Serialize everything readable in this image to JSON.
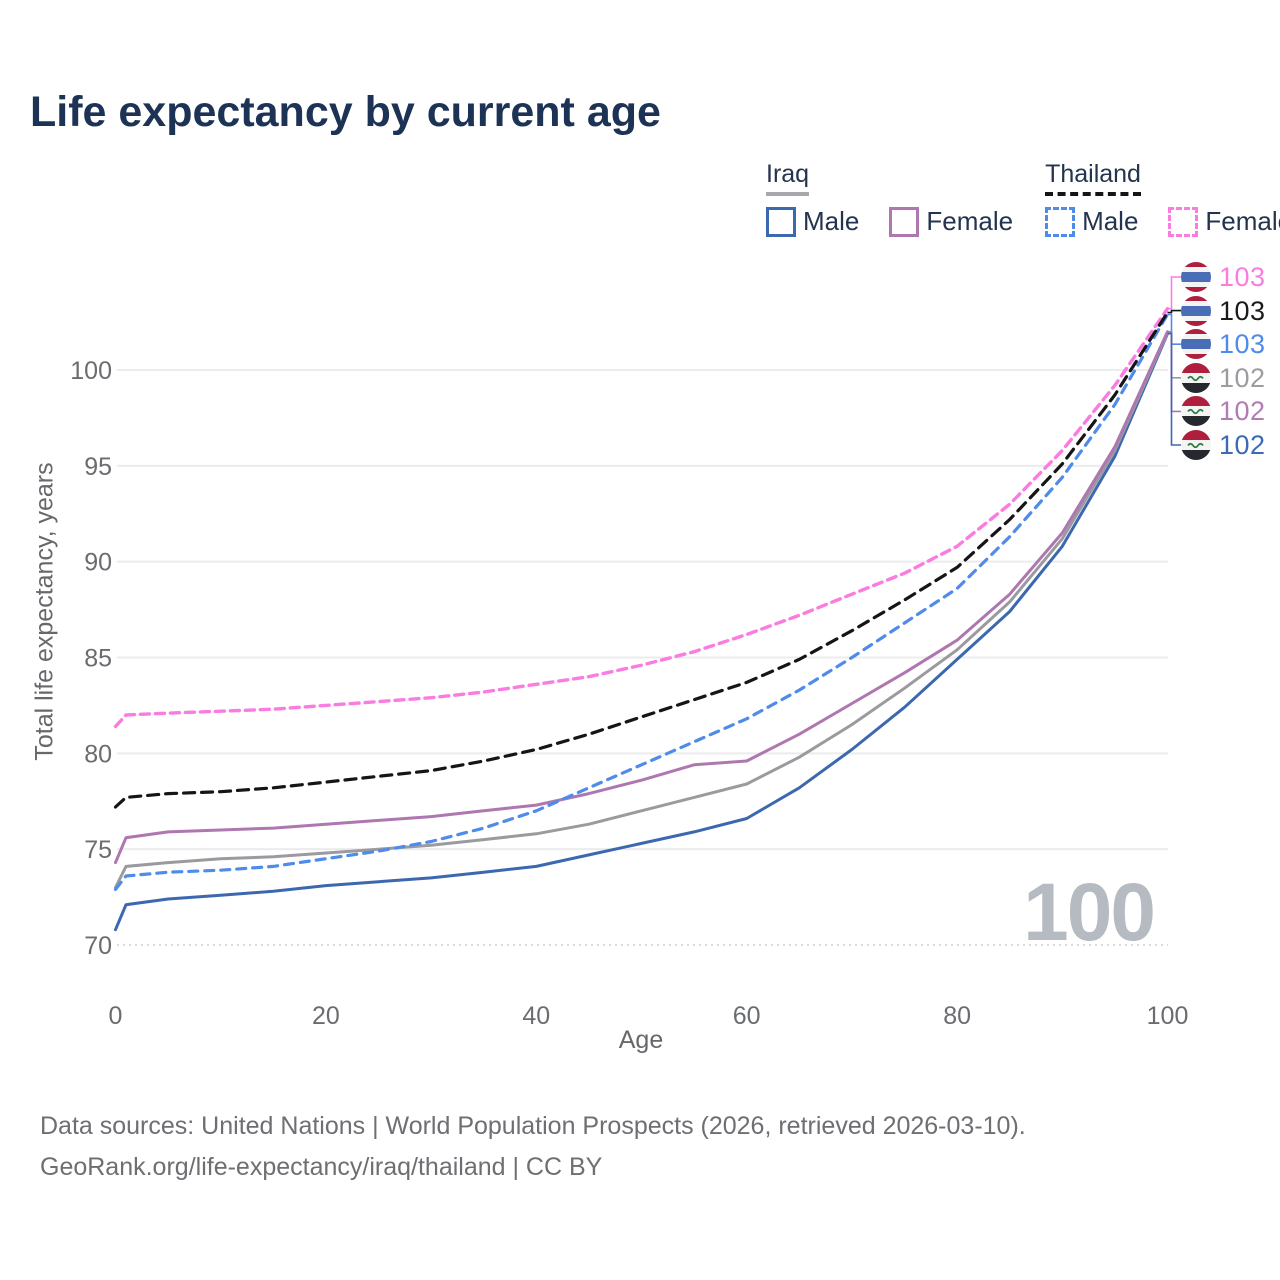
{
  "title": "Life expectancy by current age",
  "watermark": "100",
  "legend": {
    "groups": [
      {
        "title": "Iraq",
        "underline_series": "iraq_total",
        "items": [
          {
            "label": "Male",
            "series": "iraq_male"
          },
          {
            "label": "Female",
            "series": "iraq_female"
          }
        ]
      },
      {
        "title": "Thailand",
        "underline_series": "thailand_total",
        "items": [
          {
            "label": "Male",
            "series": "thailand_male"
          },
          {
            "label": "Female",
            "series": "thailand_female"
          }
        ]
      }
    ]
  },
  "footer": {
    "line1": "Data sources: United Nations | World Population Prospects (2026, retrieved 2026-03-10).",
    "line2": "GeoRank.org/life-expectancy/iraq/thailand | CC BY"
  },
  "chart_data": {
    "type": "line",
    "title": "Life expectancy by current age",
    "xlabel": "Age",
    "ylabel": "Total life expectancy, years",
    "xlim": [
      0,
      100
    ],
    "ylim": [
      69.5,
      103.5
    ],
    "xticks": [
      0,
      20,
      40,
      60,
      80,
      100
    ],
    "yticks": [
      70,
      75,
      80,
      85,
      90,
      95,
      100
    ],
    "grid": "horizontal",
    "legend_position": "top-right",
    "ages": [
      0,
      1,
      5,
      10,
      15,
      20,
      25,
      30,
      35,
      40,
      45,
      50,
      55,
      60,
      65,
      70,
      75,
      80,
      85,
      90,
      95,
      100
    ],
    "series": [
      {
        "id": "iraq_male",
        "name": "Iraq Male",
        "country": "Iraq",
        "sex": "Male",
        "color": "#3c68b0",
        "dash": null,
        "width": 3,
        "values": [
          70.8,
          72.1,
          72.4,
          72.6,
          72.8,
          73.1,
          73.3,
          73.5,
          73.8,
          74.1,
          74.7,
          75.3,
          75.9,
          76.6,
          78.2,
          80.2,
          82.4,
          84.9,
          87.4,
          90.8,
          95.5,
          101.9
        ]
      },
      {
        "id": "iraq_total",
        "name": "Iraq Total",
        "country": "Iraq",
        "sex": "Both",
        "color": "#9b9b9f",
        "dash": null,
        "width": 3,
        "values": [
          73.0,
          74.1,
          74.3,
          74.5,
          74.6,
          74.8,
          75.0,
          75.2,
          75.5,
          75.8,
          76.3,
          77.0,
          77.7,
          78.4,
          79.8,
          81.5,
          83.4,
          85.4,
          87.9,
          91.2,
          95.8,
          101.95
        ]
      },
      {
        "id": "iraq_female",
        "name": "Iraq Female",
        "country": "Iraq",
        "sex": "Female",
        "color": "#ae77b0",
        "dash": null,
        "width": 3,
        "values": [
          74.3,
          75.6,
          75.9,
          76.0,
          76.1,
          76.3,
          76.5,
          76.7,
          77.0,
          77.3,
          77.9,
          78.6,
          79.4,
          79.6,
          81.0,
          82.6,
          84.2,
          85.9,
          88.3,
          91.5,
          96.0,
          102.0
        ]
      },
      {
        "id": "thailand_male",
        "name": "Thailand Male",
        "country": "Thailand",
        "sex": "Male",
        "color": "#4f8bea",
        "dash": "9 7",
        "width": 3.2,
        "values": [
          72.9,
          73.6,
          73.8,
          73.9,
          74.1,
          74.5,
          74.9,
          75.4,
          76.1,
          77.0,
          78.2,
          79.4,
          80.6,
          81.8,
          83.3,
          85.0,
          86.8,
          88.6,
          91.3,
          94.4,
          98.2,
          102.9
        ]
      },
      {
        "id": "thailand_female",
        "name": "Thailand Female",
        "country": "Thailand",
        "sex": "Female",
        "color": "#fb7ce1",
        "dash": "9 6",
        "width": 3.4,
        "values": [
          81.4,
          82.0,
          82.1,
          82.2,
          82.3,
          82.5,
          82.7,
          82.9,
          83.2,
          83.6,
          84.0,
          84.6,
          85.3,
          86.2,
          87.2,
          88.3,
          89.4,
          90.8,
          93.0,
          95.8,
          99.2,
          103.2
        ]
      },
      {
        "id": "thailand_total",
        "name": "Thailand Total",
        "country": "Thailand",
        "sex": "Both",
        "color": "#151515",
        "dash": "11 7",
        "width": 3.2,
        "values": [
          77.2,
          77.7,
          77.9,
          78.0,
          78.2,
          78.5,
          78.8,
          79.1,
          79.6,
          80.2,
          81.0,
          81.9,
          82.8,
          83.7,
          84.9,
          86.4,
          88.0,
          89.7,
          92.2,
          95.1,
          98.7,
          103.0
        ]
      }
    ],
    "end_labels": [
      {
        "series": "thailand_female",
        "flag": "thailand",
        "value": "103",
        "color": "#fb7ce1"
      },
      {
        "series": "thailand_total",
        "flag": "thailand",
        "value": "103",
        "color": "#1a1a1a"
      },
      {
        "series": "thailand_male",
        "flag": "thailand",
        "value": "103",
        "color": "#4f8bea"
      },
      {
        "series": "iraq_total",
        "flag": "iraq",
        "value": "102",
        "color": "#9c9ca1"
      },
      {
        "series": "iraq_female",
        "flag": "iraq",
        "value": "102",
        "color": "#b27cb2"
      },
      {
        "series": "iraq_male",
        "flag": "iraq",
        "value": "102",
        "color": "#3d6bb3"
      }
    ],
    "flag_colors": {
      "thailand_red": "#b01e3e",
      "thailand_blue": "#4a6db8",
      "thailand_white": "#f4f4f4",
      "iraq_red": "#b01e3e",
      "iraq_white": "#f4f4f4",
      "iraq_black": "#25282c",
      "iraq_green": "#2f7d44"
    }
  }
}
